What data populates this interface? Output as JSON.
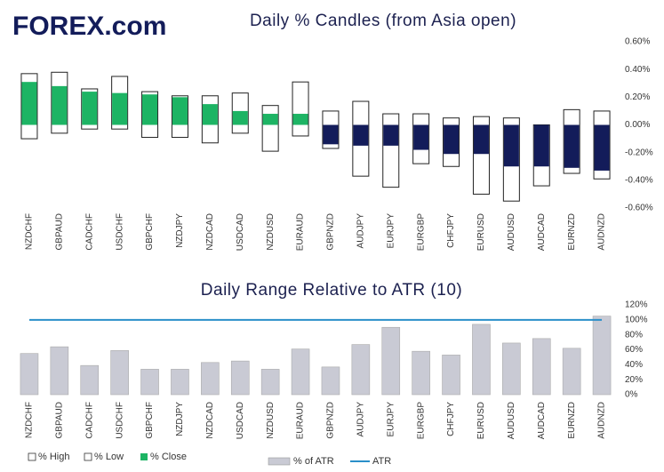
{
  "logo": "FOREX.com",
  "chart_data": [
    {
      "type": "candle",
      "title": "Daily % Candles (from Asia open)",
      "categories": [
        "NZDCHF",
        "GBPAUD",
        "CADCHF",
        "USDCHF",
        "GBPCHF",
        "NZDJPY",
        "NZDCAD",
        "USDCAD",
        "NZDUSD",
        "EURAUD",
        "GBPNZD",
        "AUDJPY",
        "EURJPY",
        "EURGBP",
        "CHFJPY",
        "EURUSD",
        "AUDUSD",
        "AUDCAD",
        "EURNZD",
        "AUDNZD"
      ],
      "series": [
        {
          "name": "% High",
          "color": "#ffffff",
          "values": [
            0.37,
            0.38,
            0.26,
            0.35,
            0.24,
            0.21,
            0.21,
            0.23,
            0.14,
            0.31,
            0.1,
            0.17,
            0.08,
            0.08,
            0.05,
            0.06,
            0.05,
            0.0,
            0.11,
            0.1
          ]
        },
        {
          "name": "% Low",
          "color": "#ffffff",
          "values": [
            -0.1,
            -0.06,
            -0.03,
            -0.03,
            -0.09,
            -0.09,
            -0.13,
            -0.06,
            -0.19,
            -0.08,
            -0.17,
            -0.37,
            -0.45,
            -0.28,
            -0.3,
            -0.5,
            -0.55,
            -0.44,
            -0.35,
            -0.39
          ]
        },
        {
          "name": "% Close",
          "color": "#1db464",
          "down_color": "#131c5a",
          "values": [
            0.31,
            0.28,
            0.24,
            0.23,
            0.22,
            0.2,
            0.15,
            0.1,
            0.08,
            0.08,
            -0.14,
            -0.15,
            -0.15,
            -0.18,
            -0.21,
            -0.21,
            -0.3,
            -0.3,
            -0.31,
            -0.33
          ]
        }
      ],
      "ylim": [
        -0.6,
        0.6
      ],
      "yticks": [
        {
          "value": 0.6,
          "label": "0.60%"
        },
        {
          "value": 0.4,
          "label": "0.40%"
        },
        {
          "value": 0.2,
          "label": "0.20%"
        },
        {
          "value": 0,
          "label": "0.00%"
        },
        {
          "value": -0.2,
          "label": "-0.20%"
        },
        {
          "value": -0.4,
          "label": "-0.40%"
        },
        {
          "value": -0.6,
          "label": "-0.60%"
        }
      ]
    },
    {
      "type": "bar",
      "title": "Daily Range Relative to ATR (10)",
      "categories": [
        "NZDCHF",
        "GBPAUD",
        "CADCHF",
        "USDCHF",
        "GBPCHF",
        "NZDJPY",
        "NZDCAD",
        "USDCAD",
        "NZDUSD",
        "EURAUD",
        "GBPNZD",
        "AUDJPY",
        "EURJPY",
        "EURGBP",
        "CHFJPY",
        "EURUSD",
        "AUDUSD",
        "AUDCAD",
        "EURNZD",
        "AUDNZD"
      ],
      "series": [
        {
          "name": "% of ATR",
          "type": "bar",
          "color": "#c9cad4",
          "values": [
            55,
            64,
            39,
            59,
            34,
            34,
            43,
            45,
            34,
            61,
            37,
            67,
            90,
            58,
            53,
            94,
            69,
            75,
            62,
            105
          ]
        },
        {
          "name": "ATR",
          "type": "line",
          "color": "#2a8fc9",
          "values": [
            100,
            100,
            100,
            100,
            100,
            100,
            100,
            100,
            100,
            100,
            100,
            100,
            100,
            100,
            100,
            100,
            100,
            100,
            100,
            100
          ]
        }
      ],
      "ylim": [
        0,
        120
      ],
      "yticks": [
        {
          "value": 0,
          "label": "0%"
        },
        {
          "value": 20,
          "label": "20%"
        },
        {
          "value": 40,
          "label": "40%"
        },
        {
          "value": 60,
          "label": "60%"
        },
        {
          "value": 80,
          "label": "80%"
        },
        {
          "value": 100,
          "label": "100%"
        },
        {
          "value": 120,
          "label": "120%"
        }
      ]
    }
  ]
}
